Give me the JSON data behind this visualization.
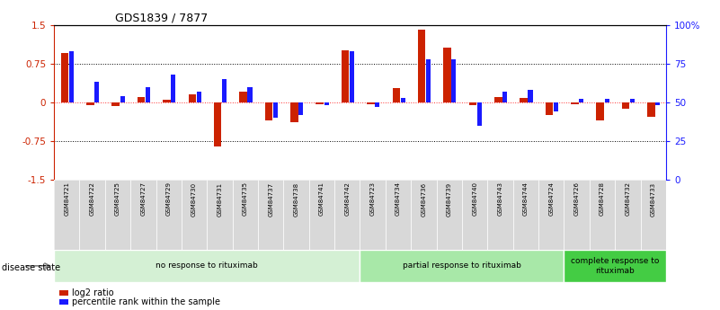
{
  "title": "GDS1839 / 7877",
  "samples": [
    "GSM84721",
    "GSM84722",
    "GSM84725",
    "GSM84727",
    "GSM84729",
    "GSM84730",
    "GSM84731",
    "GSM84735",
    "GSM84737",
    "GSM84738",
    "GSM84741",
    "GSM84742",
    "GSM84723",
    "GSM84734",
    "GSM84736",
    "GSM84739",
    "GSM84740",
    "GSM84743",
    "GSM84744",
    "GSM84724",
    "GSM84726",
    "GSM84728",
    "GSM84732",
    "GSM84733"
  ],
  "log2_ratio": [
    0.95,
    -0.05,
    -0.07,
    0.1,
    0.05,
    0.15,
    -0.85,
    0.2,
    -0.35,
    -0.38,
    -0.04,
    1.0,
    -0.04,
    0.28,
    1.4,
    1.05,
    -0.05,
    0.1,
    0.08,
    -0.25,
    -0.04,
    -0.35,
    -0.12,
    -0.28
  ],
  "percentile_rank": [
    83,
    63,
    54,
    60,
    68,
    57,
    65,
    60,
    40,
    42,
    48,
    83,
    47,
    53,
    78,
    78,
    35,
    57,
    58,
    44,
    52,
    52,
    52,
    48
  ],
  "group_labels": [
    "no response to rituximab",
    "partial response to rituximab",
    "complete response to\nrituximab"
  ],
  "group_sizes": [
    12,
    8,
    4
  ],
  "group_colors": [
    "#d4f0d4",
    "#a8e8a8",
    "#44cc44"
  ],
  "bar_color_red": "#cc2200",
  "bar_color_blue": "#1a1aff",
  "ylim_left": [
    -1.5,
    1.5
  ],
  "ylim_right": [
    0,
    100
  ],
  "yticks_left": [
    -1.5,
    -0.75,
    0.0,
    0.75,
    1.5
  ],
  "ytick_labels_left": [
    "-1.5",
    "-0.75",
    "0",
    "0.75",
    "1.5"
  ],
  "ytick_labels_right": [
    "0",
    "25",
    "50",
    "75",
    "100%"
  ],
  "disease_state_label": "disease state",
  "legend_red": "log2 ratio",
  "legend_blue": "percentile rank within the sample"
}
